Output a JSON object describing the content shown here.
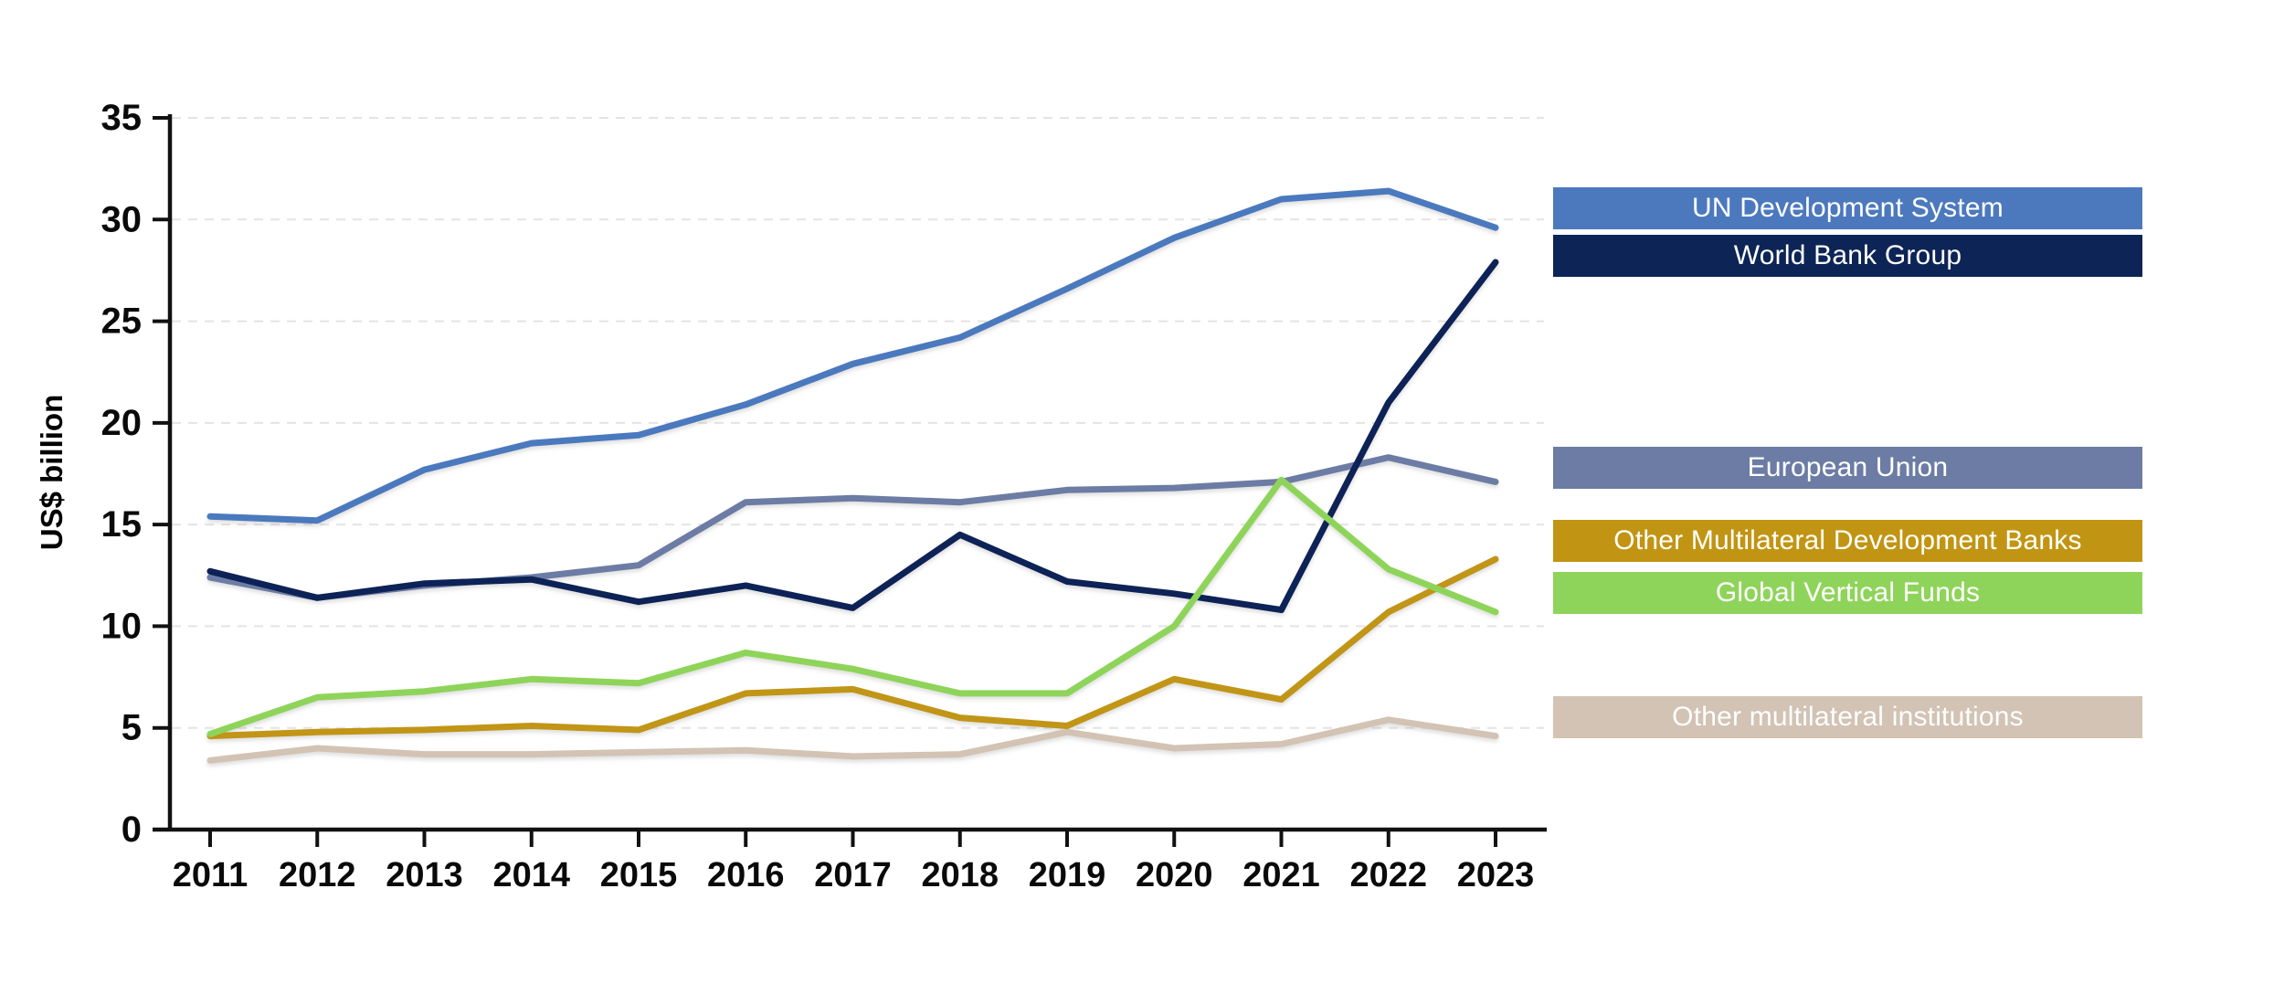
{
  "figure": {
    "ylabel": "US$ billion"
  },
  "chart_data": {
    "type": "line",
    "title": "",
    "xlabel": "",
    "ylabel": "US$ billion",
    "x": [
      2011,
      2012,
      2013,
      2014,
      2015,
      2016,
      2017,
      2018,
      2019,
      2020,
      2021,
      2022,
      2023
    ],
    "ylim": [
      0,
      35
    ],
    "yticks": [
      0,
      5,
      10,
      15,
      20,
      25,
      30,
      35
    ],
    "grid": "horizontal-dashed",
    "legend_position": "right",
    "series": [
      {
        "name": "UN Development System",
        "color": "#4C79BE",
        "values": [
          15.4,
          15.2,
          17.7,
          19.0,
          19.4,
          20.9,
          22.9,
          24.2,
          26.6,
          29.1,
          31.0,
          31.4,
          29.6
        ]
      },
      {
        "name": "World Bank Group",
        "color": "#0D2456",
        "values": [
          12.7,
          11.4,
          12.1,
          12.3,
          11.2,
          12.0,
          10.9,
          14.5,
          12.2,
          11.6,
          10.8,
          21.0,
          27.9
        ]
      },
      {
        "name": "European Union",
        "color": "#6C7CA4",
        "values": [
          12.4,
          11.4,
          12.0,
          12.4,
          13.0,
          16.1,
          16.3,
          16.1,
          16.7,
          16.8,
          17.1,
          18.3,
          17.1
        ]
      },
      {
        "name": "Other Multilateral Development Banks",
        "color": "#C19513",
        "values": [
          4.6,
          4.8,
          4.9,
          5.1,
          4.9,
          6.7,
          6.9,
          5.5,
          5.1,
          7.4,
          6.4,
          10.7,
          13.3
        ]
      },
      {
        "name": "Global Vertical Funds",
        "color": "#8FD45A",
        "values": [
          4.7,
          6.5,
          6.8,
          7.4,
          7.2,
          8.7,
          7.9,
          6.7,
          6.7,
          10.0,
          17.2,
          12.8,
          10.7
        ]
      },
      {
        "name": "Other multilateral institutions",
        "color": "#D2C3B4",
        "values": [
          3.4,
          4.0,
          3.7,
          3.7,
          3.8,
          3.9,
          3.6,
          3.7,
          4.8,
          4.0,
          4.2,
          5.4,
          4.6
        ]
      }
    ]
  }
}
